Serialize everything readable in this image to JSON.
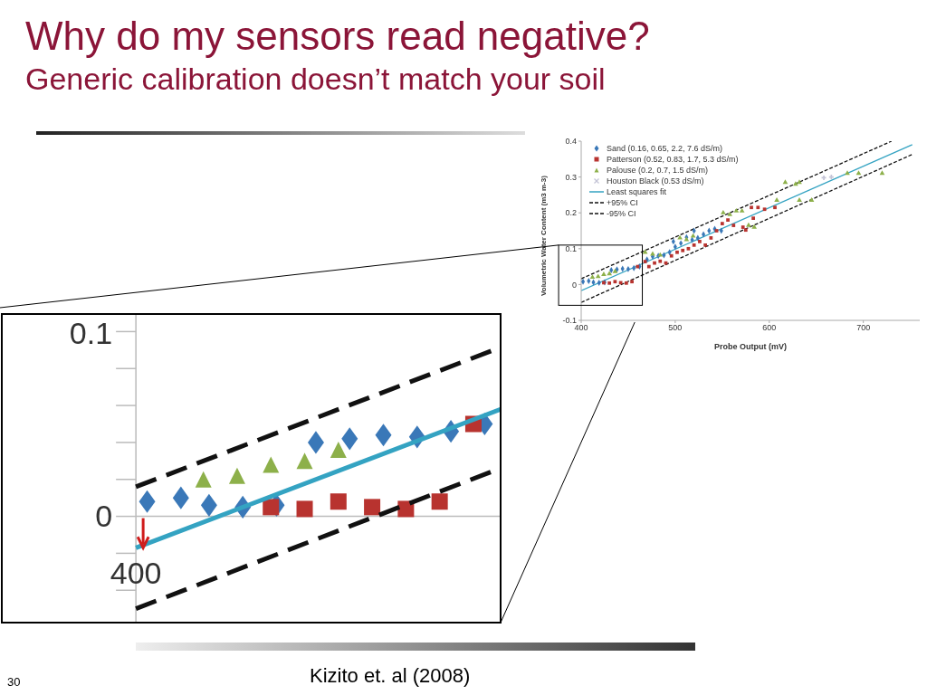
{
  "chart_data": {
    "type": "scatter",
    "title": "Why do my sensors read negative?",
    "subtitle": "Generic calibration doesn’t match your soil",
    "xlabel": "Probe Output (mV)",
    "ylabel": "Volumetric Water Content (m3 m-3)",
    "xlim": [
      400,
      760
    ],
    "ylim": [
      -0.1,
      0.4
    ],
    "xticks": [
      400,
      500,
      600,
      700
    ],
    "yticks": [
      -0.1,
      0,
      0.1,
      0.2,
      0.3,
      0.4
    ],
    "legend": "top left",
    "annotations": [
      "Kizito et. al (2008)",
      "30",
      "0.1",
      "0",
      "400"
    ],
    "series": [
      {
        "name": "Sand (0.16, 0.65, 2.2, 7.6 dS/m)",
        "color": "#3a78b8",
        "marker": "diamond",
        "x": [
          402,
          408,
          413,
          419,
          425,
          432,
          438,
          444,
          450,
          456,
          462,
          470,
          476,
          482,
          488,
          494,
          500,
          506,
          512,
          518,
          524,
          530,
          536,
          542,
          549,
          498,
          520
        ],
        "values": [
          0.008,
          0.01,
          0.006,
          0.005,
          0.006,
          0.04,
          0.042,
          0.044,
          0.043,
          0.046,
          0.05,
          0.07,
          0.078,
          0.08,
          0.082,
          0.09,
          0.105,
          0.115,
          0.132,
          0.125,
          0.13,
          0.14,
          0.15,
          0.155,
          0.15,
          0.12,
          0.15
        ]
      },
      {
        "name": "Patterson (0.52, 0.83, 1.7, 5.3 dS/m)",
        "color": "#b8332f",
        "marker": "square",
        "x": [
          424,
          430,
          436,
          442,
          448,
          454,
          460,
          468,
          472,
          478,
          484,
          490,
          496,
          502,
          508,
          514,
          520,
          526,
          532,
          538,
          544,
          550,
          556,
          562,
          572,
          575,
          583,
          581,
          588,
          595,
          606
        ],
        "values": [
          0.005,
          0.004,
          0.008,
          0.005,
          0.004,
          0.008,
          0.05,
          0.064,
          0.05,
          0.06,
          0.065,
          0.06,
          0.08,
          0.09,
          0.095,
          0.1,
          0.11,
          0.12,
          0.11,
          0.13,
          0.15,
          0.17,
          0.18,
          0.165,
          0.16,
          0.152,
          0.185,
          0.215,
          0.215,
          0.21,
          0.215
        ]
      },
      {
        "name": "Palouse (0.2, 0.7, 1.5 dS/m)",
        "color": "#8db04a",
        "marker": "triangle",
        "x": [
          412,
          418,
          424,
          430,
          436,
          468,
          476,
          484,
          505,
          512,
          519,
          551,
          558,
          565,
          571,
          578,
          584,
          608,
          617,
          628,
          632,
          632,
          645,
          683,
          695,
          720
        ],
        "values": [
          0.02,
          0.022,
          0.028,
          0.03,
          0.036,
          0.09,
          0.085,
          0.082,
          0.13,
          0.125,
          0.135,
          0.2,
          0.195,
          0.205,
          0.205,
          0.165,
          0.16,
          0.235,
          0.285,
          0.28,
          0.285,
          0.235,
          0.235,
          0.31,
          0.31,
          0.31
        ]
      },
      {
        "name": "Houston Black (0.53 dS/m)",
        "color": "#c4c4d6",
        "marker": "cross",
        "x": [
          658,
          666
        ],
        "values": [
          0.298,
          0.3
        ]
      },
      {
        "name": "Least squares fit",
        "type": "line",
        "color": "#34a3c2",
        "line_style": "solid",
        "x": [
          400,
          752
        ],
        "values": [
          -0.017,
          0.39
        ]
      },
      {
        "name": "+95% CI",
        "type": "line",
        "color": "#111111",
        "line_style": "dashed",
        "x": [
          400,
          730
        ],
        "values": [
          0.016,
          0.4
        ]
      },
      {
        "name": "-95% CI",
        "type": "line",
        "color": "#111111",
        "line_style": "dashed",
        "x": [
          400,
          752
        ],
        "values": [
          -0.05,
          0.363
        ]
      }
    ]
  }
}
